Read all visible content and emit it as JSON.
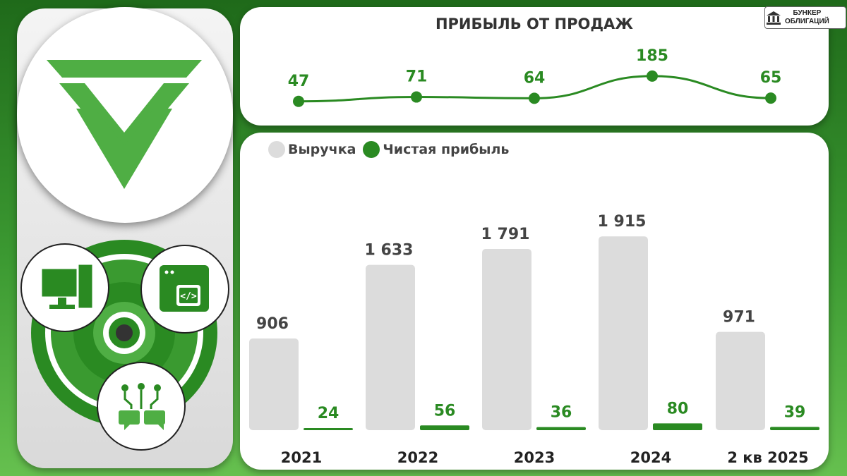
{
  "brand": {
    "line1": "БУНКЕР",
    "line2": "ОБЛИГАЦИЙ",
    "icon": "bank-building-icon"
  },
  "left": {
    "icons": [
      "green-v-logo-icon",
      "computer-monitor-icon",
      "code-window-icon",
      "circuit-chat-icon"
    ]
  },
  "colors": {
    "green": "#2a8a22",
    "light_green": "#4fae44",
    "gray_bar": "#dcdcdc",
    "dark_text": "#444444"
  },
  "chart_data": [
    {
      "type": "line",
      "title": "ПРИБЫЛЬ ОТ ПРОДАЖ",
      "x": [
        "2021",
        "2022",
        "2023",
        "2024",
        "2 кв 2025"
      ],
      "values": [
        47,
        71,
        64,
        185,
        65
      ]
    },
    {
      "type": "bar",
      "categories": [
        "2021",
        "2022",
        "2023",
        "2024",
        "2 кв 2025"
      ],
      "legend_position": "top-left",
      "series": [
        {
          "name": "Выручка",
          "values": [
            906,
            1633,
            1791,
            1915,
            971
          ],
          "labels": [
            "906",
            "1 633",
            "1 791",
            "1 915",
            "971"
          ],
          "color": "#dcdcdc"
        },
        {
          "name": "Чистая прибыль",
          "values": [
            24,
            56,
            36,
            80,
            39
          ],
          "labels": [
            "24",
            "56",
            "36",
            "80",
            "39"
          ],
          "color": "#2a8a22"
        }
      ]
    }
  ]
}
